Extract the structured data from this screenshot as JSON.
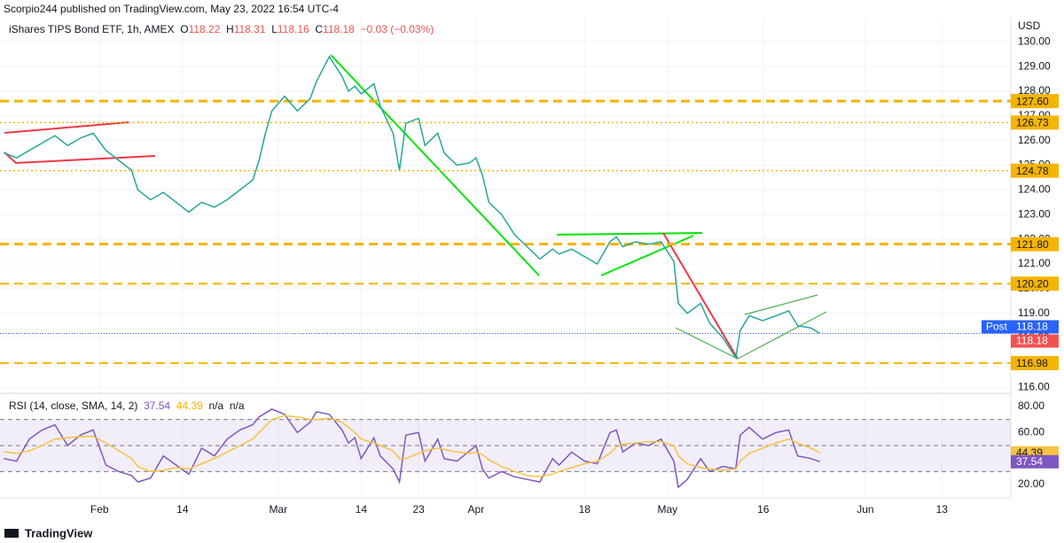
{
  "header": {
    "publisher": "Scorpio244 published on TradingView.com, May 23, 2022 16:54 UTC-4"
  },
  "footer": {
    "brand": "TradingView"
  },
  "chart_data": [
    {
      "type": "line",
      "title": "iShares TIPS Bond ETF, 1h, AMEX",
      "ohlc": [
        {
          "label": "O",
          "value": 118.22
        },
        {
          "label": "H",
          "value": 118.31
        },
        {
          "label": "L",
          "value": 118.16
        },
        {
          "label": "C",
          "value": 118.18
        }
      ],
      "change": "−0.03 (−0.03%)",
      "axis_label": "USD",
      "color": "#26a69a",
      "x": [
        17,
        19,
        21,
        23,
        25,
        27,
        29,
        31,
        33,
        35,
        37,
        38,
        40,
        42,
        44,
        46,
        48,
        50,
        52,
        54,
        56,
        57,
        58,
        59,
        61,
        63,
        65,
        66,
        68,
        70,
        71,
        72,
        73,
        75,
        76,
        78,
        79,
        80,
        82,
        83,
        85,
        86,
        88,
        90,
        91,
        92,
        93,
        95,
        97,
        99,
        101,
        103,
        104,
        106,
        108,
        110,
        112,
        113,
        114,
        116,
        118,
        120,
        122,
        122.7,
        124.1,
        126.2,
        127.6,
        129.7,
        131.7,
        132.4,
        133.8,
        135.9,
        138,
        140,
        141.4,
        143.5,
        144.9
      ],
      "values": [
        125.5,
        125.3,
        125.6,
        125.9,
        126.2,
        125.8,
        126.1,
        126.3,
        125.6,
        125.2,
        124.8,
        124.0,
        123.6,
        123.9,
        123.5,
        123.1,
        123.5,
        123.3,
        123.6,
        124.0,
        124.4,
        125.2,
        126.3,
        127.2,
        127.8,
        127.2,
        127.7,
        128.4,
        129.4,
        128.6,
        128.0,
        128.2,
        127.9,
        128.3,
        127.4,
        126.3,
        124.8,
        126.7,
        126.9,
        125.8,
        126.3,
        125.5,
        125.0,
        125.1,
        125.3,
        124.6,
        123.5,
        123.0,
        122.2,
        121.7,
        121.2,
        121.6,
        121.4,
        121.6,
        121.3,
        121.0,
        121.9,
        122.1,
        121.7,
        121.9,
        121.8,
        121.9,
        121.1,
        119.4,
        119.0,
        119.4,
        118.6,
        118.0,
        117.2,
        118.3,
        118.9,
        118.7,
        118.9,
        119.1,
        118.5,
        118.4,
        118.18
      ],
      "xlim": [
        16.4,
        174.8
      ],
      "xticks": [
        {
          "value": 32,
          "label": "Feb"
        },
        {
          "value": 45,
          "label": "14"
        },
        {
          "value": 60,
          "label": "Mar"
        },
        {
          "value": 73,
          "label": "14"
        },
        {
          "value": 82,
          "label": "23"
        },
        {
          "value": 91,
          "label": "Apr"
        },
        {
          "value": 108,
          "label": "18"
        },
        {
          "value": 121,
          "label": "May"
        },
        {
          "value": 136,
          "label": "16"
        },
        {
          "value": 152,
          "label": "Jun"
        },
        {
          "value": 164,
          "label": "13"
        }
      ],
      "ylim": [
        115.9,
        130.8
      ],
      "yticks": [
        {
          "value": 116,
          "label": "116.00"
        },
        {
          "value": 117,
          "label": "117.00"
        },
        {
          "value": 118,
          "label": "118.00"
        },
        {
          "value": 119,
          "label": "119.00"
        },
        {
          "value": 120,
          "label": "120.00"
        },
        {
          "value": 121,
          "label": "121.00"
        },
        {
          "value": 122,
          "label": "122.00"
        },
        {
          "value": 123,
          "label": "123.00"
        },
        {
          "value": 124,
          "label": "124.00"
        },
        {
          "value": 125,
          "label": "125.00"
        },
        {
          "value": 126,
          "label": "126.00"
        },
        {
          "value": 127,
          "label": "127.00"
        },
        {
          "value": 128,
          "label": "128.00"
        },
        {
          "value": 129,
          "label": "129.00"
        },
        {
          "value": 130,
          "label": "130.00"
        }
      ],
      "grid": true,
      "levels": [
        {
          "value": 127.6,
          "label": "127.60",
          "style": "dashed"
        },
        {
          "value": 126.73,
          "label": "126.73",
          "style": "dotted"
        },
        {
          "value": 124.78,
          "label": "124.78",
          "style": "dotted"
        },
        {
          "value": 121.8,
          "label": "121.80",
          "style": "dashed"
        },
        {
          "value": 120.2,
          "label": "120.20",
          "style": "dashed"
        },
        {
          "value": 116.98,
          "label": "116.98",
          "style": "dashed"
        }
      ],
      "level_color": "#f5b400",
      "post": {
        "tag": "Post",
        "value": 118.18,
        "color": "#2962ff"
      },
      "close": {
        "value": 118.18,
        "color": "#ef5350"
      }
    },
    {
      "type": "line",
      "title": "RSI (14, close, SMA, 14, 2)",
      "legend_values": [
        37.54,
        44.39,
        "n/a",
        "n/a"
      ],
      "ylim": [
        9.8,
        86.1
      ],
      "yticks": [
        {
          "value": 20,
          "label": "20.00"
        },
        {
          "value": 60,
          "label": "60.00"
        },
        {
          "value": 80,
          "label": "80.00"
        }
      ],
      "band": [
        30,
        70
      ],
      "midline": 50,
      "series": [
        {
          "color": "#7e57c2",
          "values": [
            40,
            38,
            55,
            62,
            66,
            50,
            58,
            62,
            35,
            30,
            27,
            22,
            25,
            42,
            35,
            28,
            48,
            42,
            55,
            62,
            66,
            72,
            75,
            78,
            74,
            60,
            68,
            76,
            74,
            62,
            52,
            56,
            40,
            56,
            42,
            32,
            22,
            58,
            60,
            38,
            55,
            40,
            38,
            46,
            50,
            32,
            25,
            30,
            26,
            24,
            22,
            40,
            35,
            45,
            38,
            36,
            60,
            62,
            45,
            52,
            50,
            55,
            38,
            18,
            24,
            40,
            30,
            34,
            32,
            58,
            64,
            55,
            60,
            62,
            42,
            40,
            37.54
          ]
        },
        {
          "color": "#f5c242",
          "values": [
            45,
            44,
            46,
            50,
            55,
            56,
            57,
            57,
            52,
            46,
            40,
            34,
            30,
            31,
            33,
            32,
            36,
            40,
            45,
            50,
            55,
            60,
            65,
            70,
            73,
            72,
            70,
            70,
            71,
            68,
            64,
            60,
            55,
            52,
            50,
            46,
            40,
            40,
            44,
            46,
            48,
            47,
            45,
            44,
            45,
            43,
            39,
            34,
            30,
            27,
            26,
            28,
            30,
            33,
            36,
            38,
            44,
            49,
            51,
            52,
            53,
            53,
            50,
            42,
            36,
            33,
            32,
            31,
            32,
            38,
            44,
            48,
            52,
            55,
            52,
            48,
            44.39
          ]
        }
      ]
    }
  ]
}
